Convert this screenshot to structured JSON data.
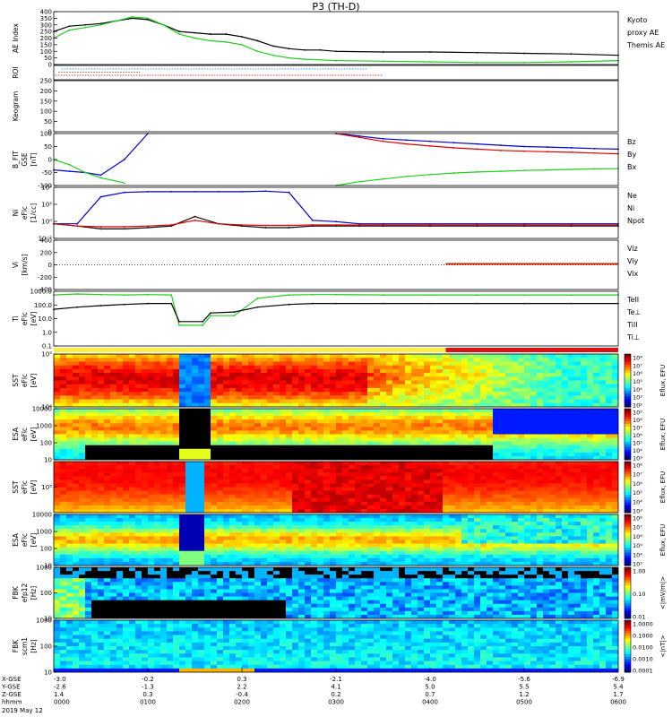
{
  "title": "P3 (TH-D)",
  "date_label": "2019 May 12",
  "time_ticks": [
    "0000",
    "0100",
    "0200",
    "0300",
    "0400",
    "0500",
    "0600"
  ],
  "orbit_rows": [
    {
      "label": "X-GSE",
      "values": [
        "-3.0",
        "-0.2",
        "0.3",
        "-2.1",
        "-4.0",
        "-5.6",
        "-6.9"
      ]
    },
    {
      "label": "Y-GSE",
      "values": [
        "-2.6",
        "-1.3",
        "2.2",
        "4.1",
        "5.0",
        "5.5",
        "5.4"
      ]
    },
    {
      "label": "Z-GSE",
      "values": [
        "1.4",
        "0.3",
        "-0.4",
        "0.2",
        "0.7",
        "1.2",
        "1.7"
      ]
    },
    {
      "label": "hhmm",
      "values": [
        "0000",
        "0100",
        "0200",
        "0300",
        "0400",
        "0500",
        "0600"
      ]
    }
  ],
  "panels": [
    {
      "ylabel": [
        "AE Index"
      ],
      "ticks": [
        "0",
        "50",
        "100",
        "150",
        "200",
        "250",
        "300",
        "350",
        "400"
      ],
      "legend": [
        {
          "text": "Kyoto",
          "color": "#22cc22"
        },
        {
          "text": "proxy AE",
          "color": "#22cc22"
        },
        {
          "text": "Themis AE",
          "color": "#000000"
        }
      ]
    },
    {
      "ylabel": [
        "ROI"
      ],
      "ticks": [],
      "legend": []
    },
    {
      "ylabel": [
        "Keogram"
      ],
      "ticks": [
        "0",
        "50",
        "100",
        "150",
        "200",
        "250"
      ],
      "legend": []
    },
    {
      "ylabel": [
        "B_FIT",
        "GSE",
        "[nT]"
      ],
      "ticks": [
        "-100",
        "-50",
        "0",
        "50",
        "100"
      ],
      "legend": [
        {
          "text": "Bz",
          "color": "#dd0000"
        },
        {
          "text": "By",
          "color": "#22cc22"
        },
        {
          "text": "Bx",
          "color": "#0000cc"
        }
      ]
    },
    {
      "ylabel": [
        "Ni",
        "eFlc",
        "[1/cc]"
      ],
      "ticks": [
        "10⁻²",
        "10⁰",
        "10²",
        "10⁴"
      ],
      "legend": [
        {
          "text": "Ne",
          "color": "#dd0000"
        },
        {
          "text": "Ni",
          "color": "#000000"
        },
        {
          "text": "Npot",
          "color": "#0000cc"
        }
      ]
    },
    {
      "ylabel": [
        "Vi",
        "[km/s]"
      ],
      "ticks": [
        "-400",
        "-200",
        "0",
        "200",
        "400"
      ],
      "legend": [
        {
          "text": "Viz",
          "color": "#dd0000"
        },
        {
          "text": "Viy",
          "color": "#22cc22"
        },
        {
          "text": "Vix",
          "color": "#0000cc"
        }
      ]
    },
    {
      "ylabel": [
        "Ti",
        "eFlc",
        "[eV]"
      ],
      "ticks": [
        "0.1",
        "1.0",
        "10.0",
        "100.0",
        "1000.0"
      ],
      "legend": [
        {
          "text": "TeII",
          "color": "#000000"
        },
        {
          "text": "Te⊥",
          "color": "#dd0000"
        },
        {
          "text": "TiII",
          "color": "#22cc22"
        },
        {
          "text": "Ti⊥",
          "color": "#0000cc"
        }
      ]
    },
    {
      "ylabel": [
        "SST",
        "eFlc",
        "[eV]"
      ],
      "ticks": [
        "10⁴",
        "10⁵"
      ],
      "legend": [],
      "cbar": [
        "10⁸",
        "10⁷",
        "10⁶",
        "10⁵",
        "10⁴",
        "10³",
        "10²"
      ],
      "cbar_title": "Eflux, EFU"
    },
    {
      "ylabel": [
        "ESA",
        "eFlc",
        "[eV]"
      ],
      "ticks": [
        "10",
        "100",
        "1000",
        "10000"
      ],
      "legend": [],
      "cbar": [
        "10⁹",
        "10⁸",
        "10⁷",
        "10⁶",
        "10⁵",
        "10⁴",
        "10³"
      ],
      "cbar_title": "Eflux, EFU"
    },
    {
      "ylabel": [
        "SST",
        "eFlc",
        "[eV]"
      ],
      "ticks": [
        "10⁵"
      ],
      "legend": [],
      "cbar": [
        "10⁸",
        "10⁷",
        "10⁶",
        "10⁵",
        "10⁴",
        "10³"
      ],
      "cbar_title": "Eflux, EFU"
    },
    {
      "ylabel": [
        "ESA",
        "eFlc",
        "[eV]"
      ],
      "ticks": [
        "10",
        "100",
        "1000",
        "10000"
      ],
      "legend": [],
      "cbar": [
        "10⁸",
        "10⁷",
        "10⁶",
        "10⁵",
        "10⁴",
        "10³"
      ],
      "cbar_title": "Eflux, EFU"
    },
    {
      "ylabel": [
        "FBK",
        "efp12",
        "[Hz]"
      ],
      "ticks": [
        "10",
        "100",
        "1000"
      ],
      "legend": [],
      "cbar": [
        "1.00",
        "0.10",
        "0.01"
      ],
      "cbar_title": "<|mV/m|>"
    },
    {
      "ylabel": [
        "FBK",
        "scm1",
        "[Hz]"
      ],
      "ticks": [
        "10",
        "100",
        "1000"
      ],
      "legend": [],
      "cbar": [
        "1.0000",
        "0.1000",
        "0.0100",
        "0.0010",
        "0.0001"
      ],
      "cbar_title": "<|nT|>"
    }
  ],
  "chart_data": {
    "type": "line",
    "title": "P3 (TH-D)",
    "x_unit": "hhmm",
    "ae_index": {
      "ylim": [
        0,
        400
      ],
      "x": [
        0,
        10,
        20,
        30,
        40,
        50,
        60,
        70,
        80,
        90,
        100,
        110,
        120,
        130,
        140,
        150,
        160,
        170,
        180,
        210,
        240,
        270,
        300,
        330,
        360
      ],
      "series": [
        {
          "name": "Themis AE",
          "color": "#000000",
          "values": [
            250,
            290,
            300,
            310,
            330,
            350,
            340,
            300,
            250,
            240,
            230,
            230,
            210,
            180,
            140,
            120,
            110,
            110,
            100,
            95,
            95,
            90,
            85,
            80,
            70
          ]
        },
        {
          "name": "Kyoto proxy AE",
          "color": "#22cc22",
          "values": [
            200,
            260,
            280,
            300,
            330,
            360,
            350,
            300,
            230,
            200,
            180,
            170,
            150,
            100,
            70,
            50,
            40,
            35,
            30,
            25,
            20,
            15,
            15,
            20,
            30
          ]
        }
      ]
    },
    "b_fit": {
      "ylim": [
        -100,
        100
      ],
      "x": [
        0,
        10,
        20,
        30,
        45,
        60,
        75,
        90,
        105,
        120,
        135,
        150,
        165,
        180,
        195,
        210,
        225,
        240,
        255,
        270,
        285,
        300,
        315,
        330,
        345,
        360
      ],
      "series": [
        {
          "name": "Bx",
          "color": "#0000cc",
          "values": [
            -40,
            -45,
            -50,
            -60,
            0,
            100,
            null,
            null,
            null,
            null,
            null,
            null,
            null,
            100,
            90,
            80,
            75,
            70,
            65,
            60,
            55,
            50,
            48,
            45,
            42,
            40
          ]
        },
        {
          "name": "By",
          "color": "#22cc22",
          "values": [
            0,
            -20,
            -50,
            -70,
            -90,
            null,
            null,
            null,
            null,
            null,
            null,
            null,
            null,
            -100,
            -85,
            -75,
            -65,
            -58,
            -52,
            -48,
            -45,
            -42,
            -40,
            -38,
            -36,
            -35
          ]
        },
        {
          "name": "Bz",
          "color": "#dd0000",
          "values": [
            null,
            null,
            null,
            null,
            null,
            null,
            null,
            null,
            null,
            null,
            null,
            null,
            null,
            100,
            85,
            70,
            60,
            52,
            45,
            40,
            35,
            32,
            30,
            28,
            25,
            22
          ]
        }
      ]
    },
    "density": {
      "y_scale": "log",
      "ylim": [
        0.01,
        100000
      ],
      "x": [
        0,
        15,
        30,
        45,
        60,
        75,
        90,
        105,
        120,
        135,
        150,
        165,
        180,
        195,
        210,
        240,
        270,
        300,
        330,
        360
      ],
      "series": [
        {
          "name": "Npot",
          "color": "#0000cc",
          "values": [
            1,
            1,
            5000,
            20000,
            25000,
            25000,
            25000,
            25000,
            25000,
            30000,
            20000,
            3,
            2,
            1,
            1,
            1,
            1,
            1,
            1,
            1
          ]
        },
        {
          "name": "Ni",
          "color": "#000000",
          "values": [
            1,
            0.5,
            0.2,
            0.2,
            0.3,
            0.5,
            10,
            1,
            0.5,
            0.3,
            0.3,
            0.5,
            0.5,
            0.5,
            0.5,
            0.5,
            0.5,
            0.5,
            0.5,
            0.5
          ]
        },
        {
          "name": "Ne",
          "color": "#dd0000",
          "values": [
            1,
            0.5,
            0.4,
            0.4,
            0.5,
            0.7,
            3,
            1,
            0.7,
            0.6,
            0.6,
            0.7,
            0.7,
            0.7,
            0.7,
            0.7,
            0.7,
            0.7,
            0.7,
            0.7
          ]
        }
      ]
    },
    "temperature": {
      "y_scale": "log",
      "ylim": [
        0.1,
        3000
      ],
      "x": [
        0,
        15,
        30,
        45,
        60,
        75,
        80,
        95,
        100,
        115,
        130,
        150,
        165,
        180,
        210,
        240,
        270,
        300,
        330,
        360
      ],
      "series": [
        {
          "name": "TiII",
          "color": "#22cc22",
          "values": [
            1500,
            1800,
            1600,
            1500,
            1600,
            1500,
            5,
            5,
            30,
            30,
            800,
            1500,
            1600,
            1600,
            1500,
            1500,
            1500,
            1500,
            1500,
            1500
          ]
        },
        {
          "name": "TeII",
          "color": "#000000",
          "values": [
            100,
            150,
            200,
            250,
            300,
            300,
            10,
            10,
            50,
            60,
            150,
            250,
            300,
            300,
            300,
            300,
            300,
            300,
            300,
            300
          ]
        }
      ]
    }
  }
}
